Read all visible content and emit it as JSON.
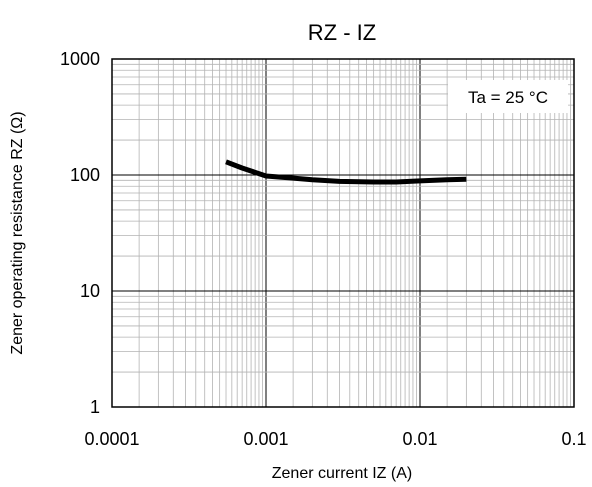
{
  "chart_data": {
    "type": "line",
    "title": "RZ - IZ",
    "xlabel": "Zener current IZ (A)",
    "ylabel": "Zener operating resistance RZ (Ω)",
    "xscale": "log",
    "yscale": "log",
    "xlim": [
      0.0001,
      0.1
    ],
    "ylim": [
      1,
      1000
    ],
    "xticks": [
      "0.0001",
      "0.001",
      "0.01",
      "0.1"
    ],
    "yticks": [
      "1",
      "10",
      "100",
      "1000"
    ],
    "grid": true,
    "annotation": "Ta = 25 °C",
    "series": [
      {
        "color": "#000000",
        "x": [
          0.00055,
          0.0007,
          0.001,
          0.0015,
          0.002,
          0.003,
          0.005,
          0.007,
          0.01,
          0.015,
          0.02
        ],
        "y": [
          130,
          115,
          98,
          94,
          91,
          88,
          87,
          87,
          89,
          91,
          92
        ]
      }
    ]
  }
}
